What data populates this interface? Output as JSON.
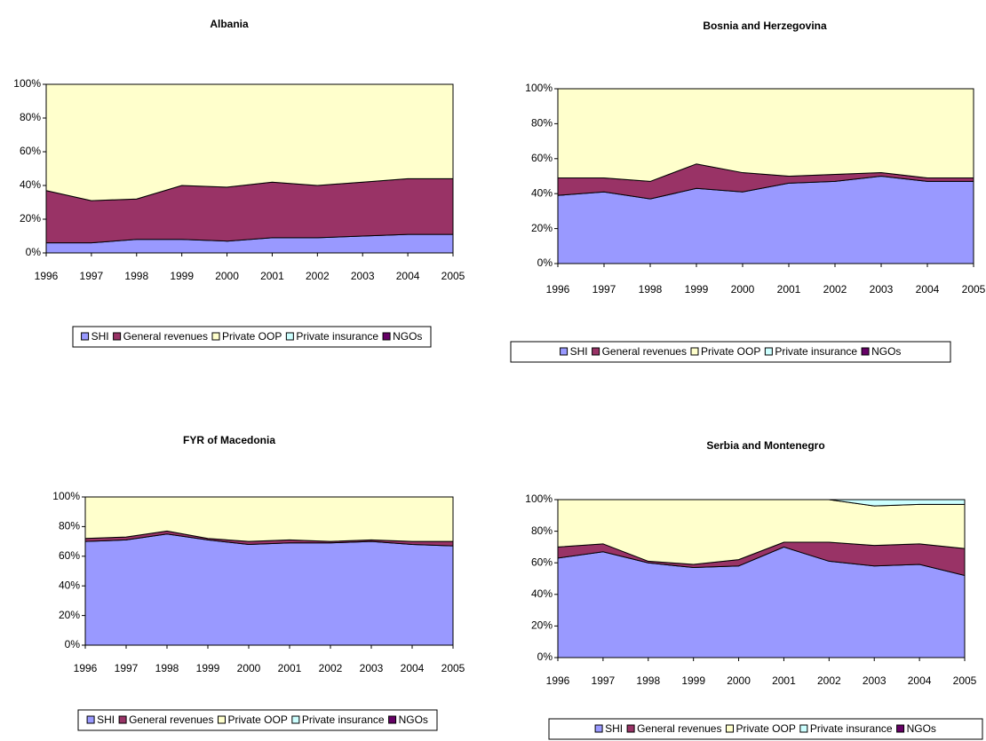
{
  "chart_data": [
    {
      "type": "stacked_area",
      "title": "Albania",
      "categories": [
        1996,
        1997,
        1998,
        1999,
        2000,
        2001,
        2002,
        2003,
        2004,
        2005
      ],
      "series": [
        {
          "name": "SHI",
          "color": "#9999ff",
          "values": [
            6,
            6,
            8,
            8,
            7,
            9,
            9,
            10,
            11,
            11
          ]
        },
        {
          "name": "General revenues",
          "color": "#993366",
          "values": [
            31,
            25,
            24,
            32,
            32,
            33,
            31,
            32,
            33,
            33
          ]
        },
        {
          "name": "Private OOP",
          "color": "#ffffcc",
          "values": [
            63,
            69,
            68,
            60,
            61,
            58,
            60,
            58,
            56,
            56
          ]
        },
        {
          "name": "Private insurance",
          "color": "#ccffff",
          "values": [
            0,
            0,
            0,
            0,
            0,
            0,
            0,
            0,
            0,
            0
          ]
        },
        {
          "name": "NGOs",
          "color": "#660066",
          "values": [
            0,
            0,
            0,
            0,
            0,
            0,
            0,
            0,
            0,
            0
          ]
        }
      ],
      "ylim": [
        0,
        100
      ],
      "yticks": [
        {
          "value": 0,
          "label": "0%"
        },
        {
          "value": 20,
          "label": "20%"
        },
        {
          "value": 40,
          "label": "40%"
        },
        {
          "value": 60,
          "label": "60%"
        },
        {
          "value": 80,
          "label": "80%"
        },
        {
          "value": 100,
          "label": "100%"
        }
      ],
      "legend": "bottom"
    },
    {
      "type": "stacked_area",
      "title": "Bosnia and Herzegovina",
      "categories": [
        1996,
        1997,
        1998,
        1999,
        2000,
        2001,
        2002,
        2003,
        2004,
        2005
      ],
      "series": [
        {
          "name": "SHI",
          "color": "#9999ff",
          "values": [
            39,
            41,
            37,
            43,
            41,
            46,
            47,
            50,
            47,
            47
          ]
        },
        {
          "name": "General revenues",
          "color": "#993366",
          "values": [
            10,
            8,
            10,
            14,
            11,
            4,
            4,
            2,
            2,
            2
          ]
        },
        {
          "name": "Private OOP",
          "color": "#ffffcc",
          "values": [
            51,
            51,
            53,
            43,
            48,
            50,
            49,
            48,
            51,
            51
          ]
        },
        {
          "name": "Private insurance",
          "color": "#ccffff",
          "values": [
            0,
            0,
            0,
            0,
            0,
            0,
            0,
            0,
            0,
            0
          ]
        },
        {
          "name": "NGOs",
          "color": "#660066",
          "values": [
            0,
            0,
            0,
            0,
            0,
            0,
            0,
            0,
            0,
            0
          ]
        }
      ],
      "ylim": [
        0,
        100
      ],
      "yticks": [
        {
          "value": 0,
          "label": "0%"
        },
        {
          "value": 20,
          "label": "20%"
        },
        {
          "value": 40,
          "label": "40%"
        },
        {
          "value": 60,
          "label": "60%"
        },
        {
          "value": 80,
          "label": "80%"
        },
        {
          "value": 100,
          "label": "100%"
        }
      ],
      "legend": "bottom"
    },
    {
      "type": "stacked_area",
      "title": "FYR of Macedonia",
      "categories": [
        1996,
        1997,
        1998,
        1999,
        2000,
        2001,
        2002,
        2003,
        2004,
        2005
      ],
      "series": [
        {
          "name": "SHI",
          "color": "#9999ff",
          "values": [
            70,
            71,
            75,
            71,
            68,
            69,
            69,
            70,
            68,
            67
          ]
        },
        {
          "name": "General revenues",
          "color": "#993366",
          "values": [
            2,
            2,
            2,
            1,
            2,
            2,
            1,
            1,
            2,
            3
          ]
        },
        {
          "name": "Private OOP",
          "color": "#ffffcc",
          "values": [
            28,
            27,
            23,
            28,
            30,
            29,
            30,
            29,
            30,
            30
          ]
        },
        {
          "name": "Private insurance",
          "color": "#ccffff",
          "values": [
            0,
            0,
            0,
            0,
            0,
            0,
            0,
            0,
            0,
            0
          ]
        },
        {
          "name": "NGOs",
          "color": "#660066",
          "values": [
            0,
            0,
            0,
            0,
            0,
            0,
            0,
            0,
            0,
            0
          ]
        }
      ],
      "ylim": [
        0,
        100
      ],
      "yticks": [
        {
          "value": 0,
          "label": "0%"
        },
        {
          "value": 20,
          "label": "20%"
        },
        {
          "value": 40,
          "label": "40%"
        },
        {
          "value": 60,
          "label": "60%"
        },
        {
          "value": 80,
          "label": "80%"
        },
        {
          "value": 100,
          "label": "100%"
        }
      ],
      "legend": "bottom"
    },
    {
      "type": "stacked_area",
      "title": "Serbia and Montenegro",
      "categories": [
        1996,
        1997,
        1998,
        1999,
        2000,
        2001,
        2002,
        2003,
        2004,
        2005
      ],
      "series": [
        {
          "name": "SHI",
          "color": "#9999ff",
          "values": [
            63,
            67,
            60,
            57,
            58,
            70,
            61,
            58,
            59,
            52
          ]
        },
        {
          "name": "General revenues",
          "color": "#993366",
          "values": [
            7,
            5,
            1,
            2,
            4,
            3,
            12,
            13,
            13,
            17
          ]
        },
        {
          "name": "Private OOP",
          "color": "#ffffcc",
          "values": [
            30,
            28,
            39,
            41,
            38,
            27,
            27,
            25,
            25,
            28
          ]
        },
        {
          "name": "Private insurance",
          "color": "#ccffff",
          "values": [
            0,
            0,
            0,
            0,
            0,
            0,
            0,
            4,
            3,
            3
          ]
        },
        {
          "name": "NGOs",
          "color": "#660066",
          "values": [
            0,
            0,
            0,
            0,
            0,
            0,
            0,
            0,
            0,
            0
          ]
        }
      ],
      "ylim": [
        0,
        100
      ],
      "yticks": [
        {
          "value": 0,
          "label": "0%"
        },
        {
          "value": 20,
          "label": "20%"
        },
        {
          "value": 40,
          "label": "40%"
        },
        {
          "value": 60,
          "label": "60%"
        },
        {
          "value": 80,
          "label": "80%"
        },
        {
          "value": 100,
          "label": "100%"
        }
      ],
      "legend": "bottom"
    }
  ]
}
